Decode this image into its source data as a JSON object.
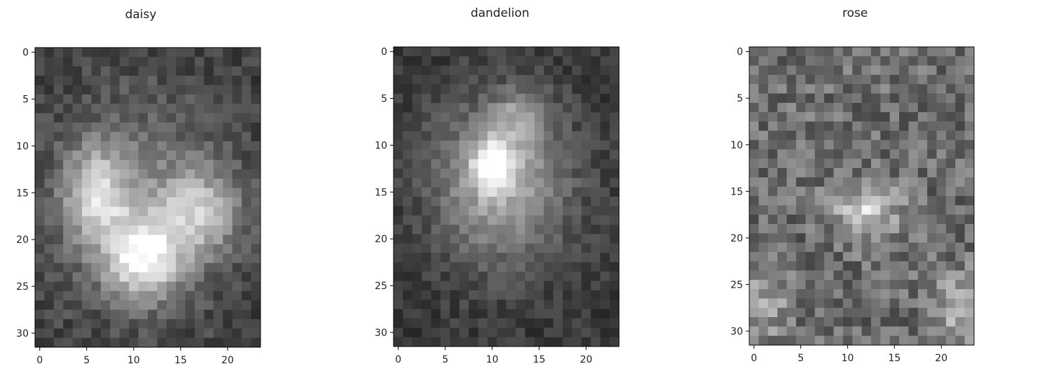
{
  "chart_data": [
    {
      "type": "heatmap",
      "title": "daisy",
      "colormap": "gray",
      "rows": 32,
      "cols": 24,
      "xticks": [
        0,
        5,
        10,
        15,
        20
      ],
      "yticks": [
        0,
        5,
        10,
        15,
        20,
        25,
        30
      ],
      "xlim": [
        -0.5,
        23.5
      ],
      "ylim": [
        31.5,
        -0.5
      ],
      "value_range": [
        0,
        1
      ],
      "background_level": 0.24,
      "blobs": [
        {
          "center": [
            6,
            15
          ],
          "spread": [
            2.5,
            3.5
          ],
          "peak": 0.45
        },
        {
          "center": [
            11,
            22
          ],
          "spread": [
            3,
            3
          ],
          "peak": 0.6
        },
        {
          "center": [
            17,
            17
          ],
          "spread": [
            3,
            3
          ],
          "peak": 0.4
        },
        {
          "center": [
            11,
            16
          ],
          "spread": [
            7,
            8
          ],
          "peak": 0.25
        }
      ],
      "noise": 0.18
    },
    {
      "type": "heatmap",
      "title": "dandelion",
      "colormap": "gray",
      "rows": 32,
      "cols": 24,
      "xticks": [
        0,
        5,
        10,
        15,
        20
      ],
      "yticks": [
        0,
        5,
        10,
        15,
        20,
        25,
        30
      ],
      "xlim": [
        -0.5,
        23.5
      ],
      "ylim": [
        31.5,
        -0.5
      ],
      "value_range": [
        0,
        1
      ],
      "background_level": 0.22,
      "blobs": [
        {
          "center": [
            10,
            12
          ],
          "spread": [
            1.5,
            2
          ],
          "peak": 0.55
        },
        {
          "center": [
            11,
            14
          ],
          "spread": [
            5,
            6
          ],
          "peak": 0.45
        },
        {
          "center": [
            13,
            7
          ],
          "spread": [
            2,
            2
          ],
          "peak": 0.25
        }
      ],
      "noise": 0.16
    },
    {
      "type": "heatmap",
      "title": "rose",
      "colormap": "gray",
      "rows": 32,
      "cols": 24,
      "xticks": [
        0,
        5,
        10,
        15,
        20
      ],
      "yticks": [
        0,
        5,
        10,
        15,
        20,
        25,
        30
      ],
      "xlim": [
        -0.5,
        23.5
      ],
      "ylim": [
        31.5,
        -0.5
      ],
      "value_range": [
        0,
        1
      ],
      "background_level": 0.42,
      "blobs": [
        {
          "center": [
            12,
            17
          ],
          "spread": [
            2.5,
            2
          ],
          "peak": 0.38
        },
        {
          "center": [
            22,
            28
          ],
          "spread": [
            2,
            3
          ],
          "peak": 0.25
        },
        {
          "center": [
            1,
            27
          ],
          "spread": [
            2,
            3
          ],
          "peak": 0.2
        }
      ],
      "noise": 0.32
    }
  ]
}
